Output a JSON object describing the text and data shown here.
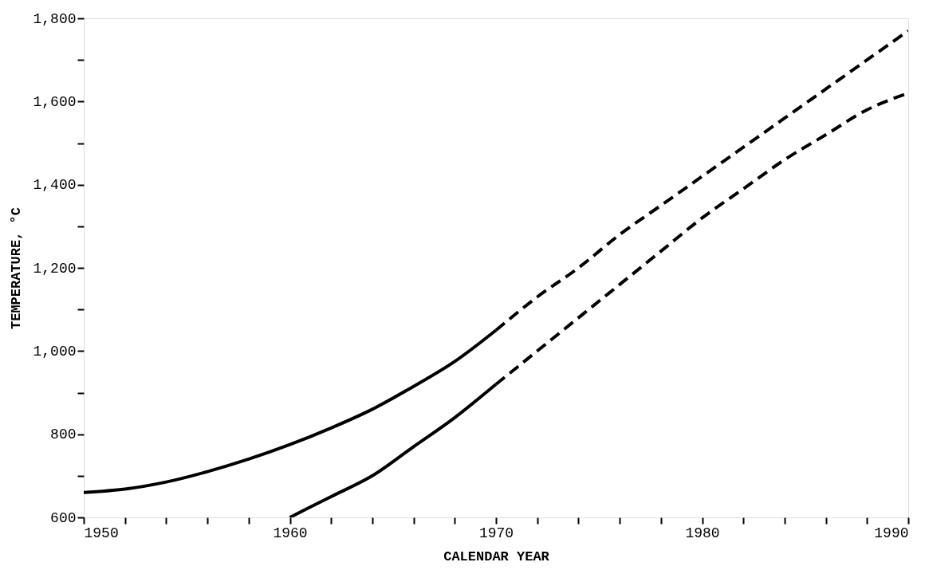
{
  "chart_data": {
    "type": "line",
    "xlabel": "CALENDAR YEAR",
    "ylabel": "TEMPERATURE, °C",
    "xlim": [
      1950,
      1990
    ],
    "ylim": [
      600,
      1800
    ],
    "xticks": [
      1950,
      {
        "value": 1952,
        "label": null
      },
      {
        "value": 1954,
        "label": null
      },
      {
        "value": 1956,
        "label": null
      },
      {
        "value": 1958,
        "label": null
      },
      1960,
      {
        "value": 1962,
        "label": null
      },
      {
        "value": 1964,
        "label": null
      },
      {
        "value": 1966,
        "label": null
      },
      {
        "value": 1968,
        "label": null
      },
      1970,
      {
        "value": 1972,
        "label": null
      },
      {
        "value": 1974,
        "label": null
      },
      {
        "value": 1976,
        "label": null
      },
      {
        "value": 1978,
        "label": null
      },
      1980,
      {
        "value": 1982,
        "label": null
      },
      {
        "value": 1984,
        "label": null
      },
      {
        "value": 1986,
        "label": null
      },
      {
        "value": 1988,
        "label": null
      },
      1990
    ],
    "yticks": [
      {
        "value": 600,
        "label": "600"
      },
      {
        "value": 700,
        "label": null
      },
      {
        "value": 800,
        "label": "800"
      },
      {
        "value": 900,
        "label": null
      },
      {
        "value": 1000,
        "label": "1,000"
      },
      {
        "value": 1100,
        "label": null
      },
      {
        "value": 1200,
        "label": "1,200"
      },
      {
        "value": 1300,
        "label": null
      },
      {
        "value": 1400,
        "label": "1,400"
      },
      {
        "value": 1500,
        "label": null
      },
      {
        "value": 1600,
        "label": "1,600"
      },
      {
        "value": 1700,
        "label": null
      },
      {
        "value": 1800,
        "label": "1,800"
      }
    ],
    "grid": false,
    "marker": "none",
    "series": [
      {
        "color": "#000000",
        "line_style": "solid",
        "x": [
          1950,
          1952,
          1954,
          1956,
          1958,
          1960,
          1962,
          1964,
          1966,
          1968,
          1970
        ],
        "values": [
          660,
          668,
          685,
          710,
          740,
          775,
          815,
          860,
          915,
          975,
          1050
        ]
      },
      {
        "color": "#000000",
        "line_style": "solid",
        "x": [
          1960,
          1962,
          1964,
          1966,
          1968,
          1970
        ],
        "values": [
          600,
          650,
          700,
          770,
          840,
          920
        ]
      },
      {
        "color": "#000000",
        "line_style": "dashed",
        "x": [
          1970,
          1972,
          1974,
          1976,
          1978,
          1980,
          1982,
          1984,
          1986,
          1988,
          1990
        ],
        "values": [
          1050,
          1130,
          1200,
          1280,
          1350,
          1420,
          1490,
          1560,
          1630,
          1700,
          1770
        ]
      },
      {
        "color": "#000000",
        "line_style": "dashed",
        "x": [
          1970,
          1972,
          1974,
          1976,
          1978,
          1980,
          1982,
          1984,
          1986,
          1988,
          1990
        ],
        "values": [
          920,
          1000,
          1080,
          1160,
          1240,
          1320,
          1390,
          1460,
          1520,
          1580,
          1620
        ]
      }
    ]
  }
}
